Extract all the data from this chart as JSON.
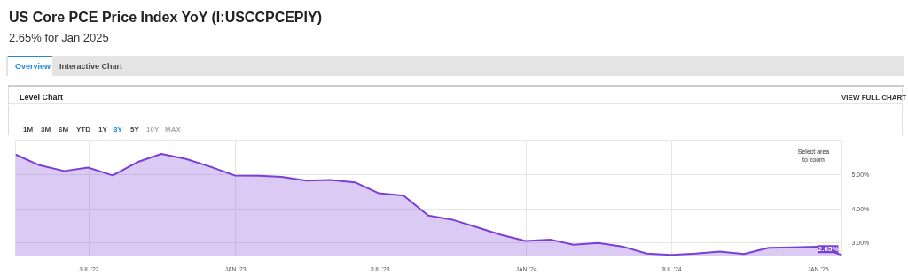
{
  "chart_data": {
    "type": "area",
    "title": "US Core PCE Price Index YoY (I:USCCPCEPIY)",
    "subtitle": "2.65% for Jan 2025",
    "x": [
      "2022-03-31",
      "2022-04-30",
      "2022-05-31",
      "2022-06-30",
      "2022-07-31",
      "2022-08-31",
      "2022-09-30",
      "2022-10-31",
      "2022-11-30",
      "2022-12-31",
      "2023-01-31",
      "2023-02-28",
      "2023-03-31",
      "2023-04-30",
      "2023-05-31",
      "2023-06-30",
      "2023-07-31",
      "2023-08-31",
      "2023-09-30",
      "2023-10-31",
      "2023-11-30",
      "2023-12-31",
      "2024-01-31",
      "2024-02-29",
      "2024-03-31",
      "2024-04-30",
      "2024-05-31",
      "2024-06-30",
      "2024-07-31",
      "2024-08-31",
      "2024-09-30",
      "2024-10-31",
      "2024-11-30",
      "2024-12-31",
      "2025-01-31"
    ],
    "series": [
      {
        "color": "#7b3fd6",
        "values": [
          5.58,
          5.27,
          5.1,
          5.2,
          4.97,
          5.36,
          5.6,
          5.45,
          5.23,
          4.97,
          4.96,
          4.93,
          4.82,
          4.84,
          4.77,
          4.45,
          4.38,
          3.8,
          3.68,
          3.46,
          3.24,
          3.06,
          3.1,
          2.95,
          3.0,
          2.9,
          2.69,
          2.65,
          2.69,
          2.75,
          2.68,
          2.86,
          2.87,
          2.89,
          2.65
        ]
      }
    ],
    "xlim": [
      "2022-03-31",
      "2025-01-31"
    ],
    "xticks": [
      {
        "value": "2022-07-01",
        "label": "JUL '22"
      },
      {
        "value": "2023-01-01",
        "label": "JAN '23"
      },
      {
        "value": "2023-07-01",
        "label": "JUL '23"
      },
      {
        "value": "2024-01-01",
        "label": "JAN '24"
      },
      {
        "value": "2024-07-01",
        "label": "JUL '24"
      },
      {
        "value": "2025-01-01",
        "label": "JAN '25"
      }
    ],
    "ylim": [
      2.62,
      6.0
    ],
    "yticks": [
      {
        "value": 3,
        "label": "3.00%"
      },
      {
        "value": 4,
        "label": "4.00%"
      },
      {
        "value": 5,
        "label": "5.00%"
      }
    ],
    "grid": true,
    "annotations": [
      "Overview",
      "Interactive Chart",
      "Level Chart",
      "VIEW FULL CHART",
      "1M",
      "3M",
      "6M",
      "YTD",
      "1Y",
      "3Y",
      "5Y",
      "10Y",
      "MAX",
      "Select area\nto zoom",
      {
        "text": "2.65%",
        "x": "2025-01-31",
        "y": 2.65
      }
    ]
  }
}
